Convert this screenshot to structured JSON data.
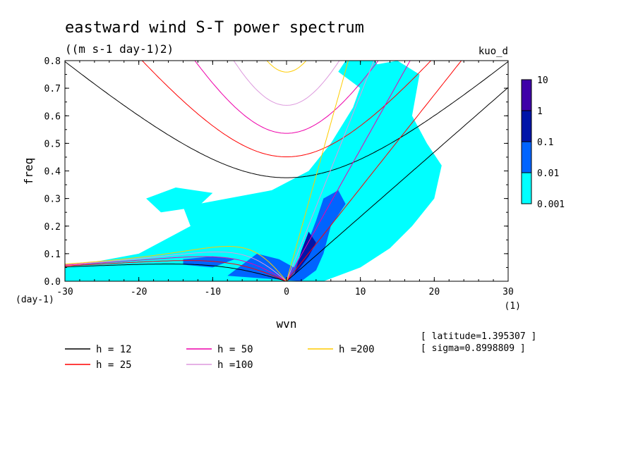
{
  "chart_data": {
    "type": "heatmap",
    "title": "eastward wind S-T power spectrum",
    "subtitle": "((m s-1 day-1)2)",
    "run_label": "kuo_d",
    "xlabel": "wvn",
    "ylabel": "freq",
    "x_unit": "(1)",
    "y_unit": "(day-1)",
    "xlim": [
      -30,
      30
    ],
    "ylim": [
      0,
      0.8
    ],
    "x_ticks": [
      -30,
      -20,
      -10,
      0,
      10,
      20,
      30
    ],
    "y_ticks": [
      0.0,
      0.1,
      0.2,
      0.3,
      0.4,
      0.5,
      0.6,
      0.7,
      0.8
    ],
    "x_tick_labels": [
      "-30",
      "-20",
      "-10",
      "0",
      "10",
      "20",
      "30"
    ],
    "y_tick_labels": [
      "0.0",
      "0.1",
      "0.2",
      "0.3",
      "0.4",
      "0.5",
      "0.6",
      "0.7",
      "0.8"
    ],
    "colorbar": {
      "levels": [
        "10",
        "1",
        "0.1",
        "0.01",
        "0.001"
      ],
      "colors": [
        "#3f00a8",
        "#0014a8",
        "#0064ff",
        "#00ffff"
      ]
    },
    "contour_fill": {
      "levels": [
        0.001,
        0.01,
        0.1,
        1
      ],
      "colors": [
        "#00ffff",
        "#0064ff",
        "#0014a8"
      ],
      "regions": [
        {
          "level": 0.001,
          "poly": [
            [
              -30,
              0.05
            ],
            [
              -20,
              0.1
            ],
            [
              -13,
              0.2
            ],
            [
              -14,
              0.27
            ],
            [
              -8,
              0.3
            ],
            [
              -2,
              0.33
            ],
            [
              3,
              0.4
            ],
            [
              6,
              0.5
            ],
            [
              9,
              0.63
            ],
            [
              11,
              0.78
            ],
            [
              15,
              0.8
            ],
            [
              18,
              0.75
            ],
            [
              17,
              0.6
            ],
            [
              19,
              0.5
            ],
            [
              21,
              0.42
            ],
            [
              20,
              0.3
            ],
            [
              17,
              0.2
            ],
            [
              14,
              0.12
            ],
            [
              10,
              0.05
            ],
            [
              5,
              0
            ],
            [
              -30,
              0
            ]
          ]
        },
        {
          "level": 0.001,
          "poly": [
            [
              -17,
              0.25
            ],
            [
              -12,
              0.27
            ],
            [
              -10,
              0.32
            ],
            [
              -15,
              0.34
            ],
            [
              -19,
              0.3
            ]
          ]
        },
        {
          "level": 0.001,
          "poly": [
            [
              10,
              0.7
            ],
            [
              13,
              0.75
            ],
            [
              12,
              0.8
            ],
            [
              8,
              0.8
            ],
            [
              7,
              0.76
            ]
          ]
        },
        {
          "level": 0.01,
          "poly": [
            [
              -8,
              0.02
            ],
            [
              -6,
              0.06
            ],
            [
              -4,
              0.1
            ],
            [
              -1,
              0.08
            ],
            [
              1,
              0.05
            ],
            [
              3,
              0.15
            ],
            [
              4,
              0.22
            ],
            [
              5,
              0.3
            ],
            [
              7,
              0.33
            ],
            [
              8,
              0.28
            ],
            [
              6,
              0.2
            ],
            [
              5,
              0.1
            ],
            [
              4,
              0.04
            ],
            [
              2,
              0
            ]
          ]
        },
        {
          "level": 0.01,
          "poly": [
            [
              -14,
              0.08
            ],
            [
              -10,
              0.09
            ],
            [
              -7,
              0.08
            ],
            [
              -10,
              0.05
            ],
            [
              -14,
              0.06
            ]
          ]
        },
        {
          "level": 0.1,
          "poly": [
            [
              1,
              0.02
            ],
            [
              3,
              0.09
            ],
            [
              4,
              0.14
            ],
            [
              3,
              0.18
            ],
            [
              2,
              0.11
            ]
          ]
        }
      ]
    },
    "dispersion_curves": [
      {
        "name": "h = 12",
        "h": 12,
        "color": "#000000"
      },
      {
        "name": "h = 25",
        "h": 25,
        "color": "#ff0000"
      },
      {
        "name": "h = 50",
        "h": 50,
        "color": "#ee00aa"
      },
      {
        "name": "h =100",
        "h": 100,
        "color": "#dd99dd"
      },
      {
        "name": "h =200",
        "h": 200,
        "color": "#ffcc00"
      }
    ],
    "info_lines": [
      "[ latitude=1.395307 ]",
      "[ sigma=0.8998809 ]"
    ]
  }
}
